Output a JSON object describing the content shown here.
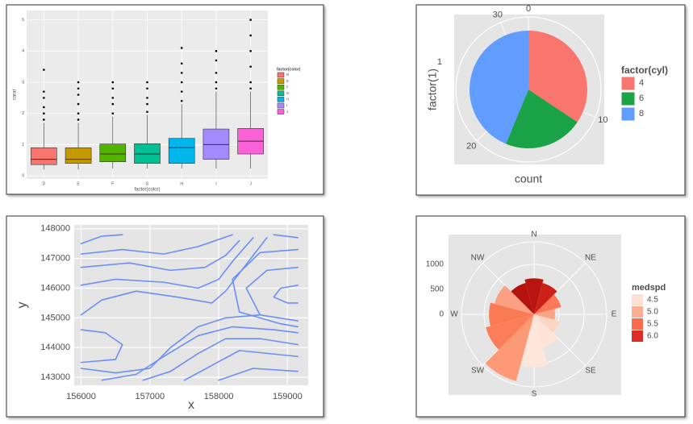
{
  "chart_data": [
    {
      "type": "boxplot",
      "xlabel": "factor(color)",
      "ylabel": "carat",
      "legend_title": "factor(color)",
      "categories": [
        "D",
        "E",
        "F",
        "G",
        "H",
        "I",
        "J"
      ],
      "colors": [
        "#F8766D",
        "#C49A00",
        "#53B400",
        "#00C094",
        "#00B6EB",
        "#A58AFF",
        "#FB61D7"
      ],
      "boxes": [
        {
          "min": 0.2,
          "q1": 0.36,
          "median": 0.53,
          "q3": 0.9,
          "max": 1.7,
          "outliers": [
            1.8,
            2.0,
            2.2,
            2.5,
            2.7,
            3.4
          ]
        },
        {
          "min": 0.2,
          "q1": 0.4,
          "median": 0.53,
          "q3": 0.9,
          "max": 1.7,
          "outliers": [
            1.8,
            2.0,
            2.3,
            2.6,
            2.8,
            3.0
          ]
        },
        {
          "min": 0.23,
          "q1": 0.45,
          "median": 0.7,
          "q3": 1.02,
          "max": 1.9,
          "outliers": [
            2.0,
            2.3,
            2.5,
            2.8,
            3.0
          ]
        },
        {
          "min": 0.23,
          "q1": 0.4,
          "median": 0.7,
          "q3": 1.03,
          "max": 1.95,
          "outliers": [
            2.05,
            2.3,
            2.5,
            2.8,
            3.0
          ]
        },
        {
          "min": 0.23,
          "q1": 0.4,
          "median": 0.9,
          "q3": 1.2,
          "max": 2.3,
          "outliers": [
            2.4,
            2.7,
            3.0,
            3.3,
            3.6,
            4.1
          ]
        },
        {
          "min": 0.23,
          "q1": 0.53,
          "median": 1.0,
          "q3": 1.5,
          "max": 2.7,
          "outliers": [
            2.8,
            3.0,
            3.3,
            3.7,
            4.0
          ]
        },
        {
          "min": 0.23,
          "q1": 0.7,
          "median": 1.11,
          "q3": 1.52,
          "max": 2.7,
          "outliers": [
            2.8,
            3.0,
            3.5,
            4.0,
            4.5,
            5.0
          ]
        }
      ],
      "ylim": [
        -0.1,
        5.3
      ],
      "yticks": [
        0,
        1,
        2,
        3,
        4,
        5
      ],
      "grid": true
    },
    {
      "type": "pie",
      "xlabel": "count",
      "ylabel": "factor(1)",
      "legend_title": "factor(cyl)",
      "categories": [
        "1"
      ],
      "series": [
        {
          "name": "4",
          "color": "#F8766D",
          "values": [
            11
          ]
        },
        {
          "name": "6",
          "color": "#1BA34A",
          "values": [
            7
          ]
        },
        {
          "name": "8",
          "color": "#619CFF",
          "values": [
            14
          ]
        }
      ],
      "xlim": [
        0,
        32
      ],
      "xticks": [
        0,
        10,
        20,
        30
      ],
      "grid": true
    },
    {
      "type": "contour",
      "xlabel": "x",
      "ylabel": "y",
      "color": "#6B8FF5",
      "xlim": [
        155900,
        159300
      ],
      "ylim": [
        142730,
        148130
      ],
      "xticks": [
        156000,
        157000,
        158000,
        159000
      ],
      "yticks": [
        143000,
        144000,
        145000,
        146000,
        147000,
        148000
      ],
      "grid": true,
      "lines": [
        {
          "x": [
            156000,
            156300,
            156600
          ],
          "y": [
            147500,
            147750,
            147800
          ]
        },
        {
          "x": [
            156000,
            156600,
            157200,
            157700,
            158200
          ],
          "y": [
            147150,
            147300,
            147150,
            147400,
            147800
          ]
        },
        {
          "x": [
            156000,
            156700,
            157300,
            157800,
            158100,
            158300
          ],
          "y": [
            146700,
            146850,
            146600,
            146700,
            147100,
            147600
          ]
        },
        {
          "x": [
            156000,
            156500,
            157200,
            157700,
            158000,
            158200,
            158500
          ],
          "y": [
            146100,
            146300,
            146200,
            146000,
            146300,
            146900,
            147700
          ]
        },
        {
          "x": [
            156000,
            156300,
            156800,
            157400,
            157900,
            158100,
            158400,
            158700
          ],
          "y": [
            145100,
            145600,
            145900,
            145700,
            145500,
            145900,
            146800,
            147700
          ]
        },
        {
          "x": [
            156000,
            156350,
            156600,
            156500,
            156000
          ],
          "y": [
            144600,
            144500,
            144100,
            143600,
            143500
          ]
        },
        {
          "x": [
            156000,
            156500,
            157000,
            157300,
            157700,
            158100,
            158600
          ],
          "y": [
            143300,
            143150,
            143300,
            144000,
            144700,
            145000,
            145100
          ]
        },
        {
          "x": [
            156300,
            156800,
            157200,
            157700,
            158200,
            158800,
            159150
          ],
          "y": [
            142900,
            143100,
            143700,
            144400,
            144700,
            144600,
            144500
          ]
        },
        {
          "x": [
            156900,
            157300,
            157700,
            158100,
            158600,
            159150
          ],
          "y": [
            142900,
            143200,
            143800,
            144300,
            144300,
            144100
          ]
        },
        {
          "x": [
            157500,
            157900,
            158300,
            159150
          ],
          "y": [
            142900,
            143400,
            143900,
            143700
          ]
        },
        {
          "x": [
            158000,
            158500,
            159150
          ],
          "y": [
            142900,
            143300,
            143200
          ]
        },
        {
          "x": [
            159150,
            158900,
            158800,
            159000,
            159150
          ],
          "y": [
            146100,
            146000,
            145700,
            145500,
            145500
          ]
        },
        {
          "x": [
            159150,
            158700,
            158400,
            158600,
            159150
          ],
          "y": [
            146700,
            146600,
            146000,
            145100,
            144900
          ]
        },
        {
          "x": [
            159150,
            158600,
            158200,
            158300,
            158900,
            159150
          ],
          "y": [
            147300,
            147200,
            146300,
            145200,
            144800,
            144700
          ]
        },
        {
          "x": [
            158800,
            159150
          ],
          "y": [
            147800,
            147700
          ]
        }
      ]
    },
    {
      "type": "polar_bar",
      "legend_title": "medspd",
      "directions": [
        "N",
        "NE",
        "E",
        "SE",
        "S",
        "SW",
        "W",
        "NW"
      ],
      "x": [
        0,
        30,
        60,
        90,
        120,
        150,
        180,
        210,
        240,
        270,
        300,
        330
      ],
      "xlim": [
        0,
        360
      ],
      "values": [
        720,
        650,
        560,
        420,
        520,
        680,
        1050,
        1380,
        1000,
        900,
        820,
        650
      ],
      "colors": [
        "#B81410",
        "#CC2117",
        "#FB7858",
        "#FCA486",
        "#FDD5C3",
        "#FEE3D6",
        "#FDE6DA",
        "#FC9A78",
        "#FB7D5A",
        "#FA7A56",
        "#FCA083",
        "#B5120E"
      ],
      "ylim": [
        0,
        1450
      ],
      "yticks": [
        0,
        500,
        1000
      ],
      "grid": true,
      "legend_values": [
        4.5,
        {
          "value": 5,
          "label": "5.0"
        },
        5.5,
        {
          "value": 6,
          "label": "6.0"
        }
      ],
      "legend_colors": [
        "#FEE0D2",
        "#FCAE91",
        "#FB6A4A",
        "#DE2D26"
      ]
    }
  ]
}
